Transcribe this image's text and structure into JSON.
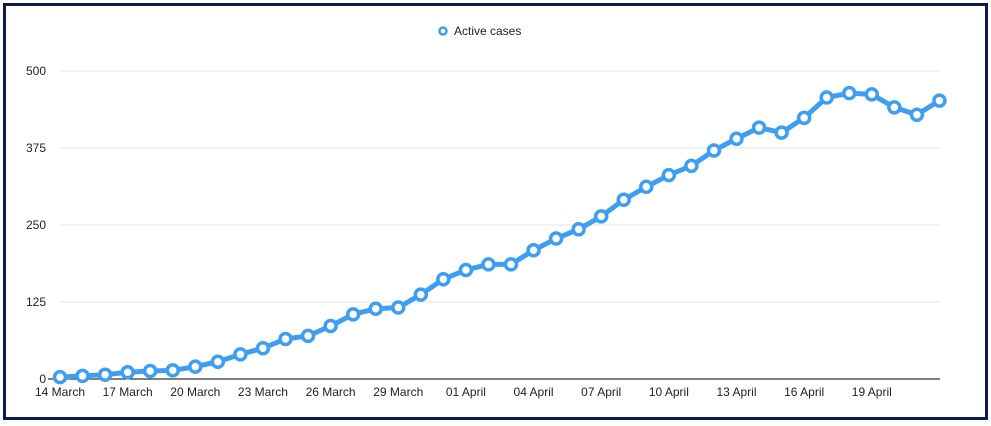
{
  "colors": {
    "frame_border": "#0d1b4c",
    "series": "#3d9ef2",
    "gridline": "#e6e6e6",
    "axis": "#000000",
    "text": "#222222"
  },
  "legend": {
    "position": "top-center",
    "marker_icon": "circle-marker-icon"
  },
  "chart_data": {
    "type": "line",
    "title": "",
    "xlabel": "",
    "ylabel": "",
    "ylim": [
      0,
      500
    ],
    "grid": "horizontal",
    "y_ticks": [
      0,
      125,
      250,
      375,
      500
    ],
    "y_tick_labels": [
      "0",
      "125",
      "250",
      "375",
      "500"
    ],
    "x_tick_labels": [
      {
        "label": "14 March",
        "index": 0
      },
      {
        "label": "17 March",
        "index": 3
      },
      {
        "label": "20 March",
        "index": 6
      },
      {
        "label": "23 March",
        "index": 9
      },
      {
        "label": "26 March",
        "index": 12
      },
      {
        "label": "29 March",
        "index": 15
      },
      {
        "label": "01 April",
        "index": 18
      },
      {
        "label": "04 April",
        "index": 21
      },
      {
        "label": "07 April",
        "index": 24
      },
      {
        "label": "10 April",
        "index": 27
      },
      {
        "label": "13 April",
        "index": 30
      },
      {
        "label": "16 April",
        "index": 33
      },
      {
        "label": "19 April",
        "index": 36
      }
    ],
    "categories": [
      "14 March",
      "15 March",
      "16 March",
      "17 March",
      "18 March",
      "19 March",
      "20 March",
      "21 March",
      "22 March",
      "23 March",
      "24 March",
      "25 March",
      "26 March",
      "27 March",
      "28 March",
      "29 March",
      "30 March",
      "31 March",
      "01 April",
      "02 April",
      "03 April",
      "04 April",
      "05 April",
      "06 April",
      "07 April",
      "08 April",
      "09 April",
      "10 April",
      "11 April",
      "12 April",
      "13 April",
      "14 April",
      "15 April",
      "16 April",
      "17 April",
      "18 April",
      "19 April",
      "20 April",
      "21 April",
      "22 April"
    ],
    "series": [
      {
        "name": "Active cases",
        "values": [
          3,
          5,
          7,
          11,
          13,
          14,
          20,
          28,
          40,
          50,
          65,
          70,
          86,
          105,
          114,
          116,
          137,
          162,
          177,
          186,
          186,
          209,
          228,
          243,
          264,
          291,
          312,
          331,
          346,
          371,
          390,
          408,
          400,
          424,
          457,
          464,
          462,
          441,
          429,
          452
        ]
      }
    ]
  }
}
